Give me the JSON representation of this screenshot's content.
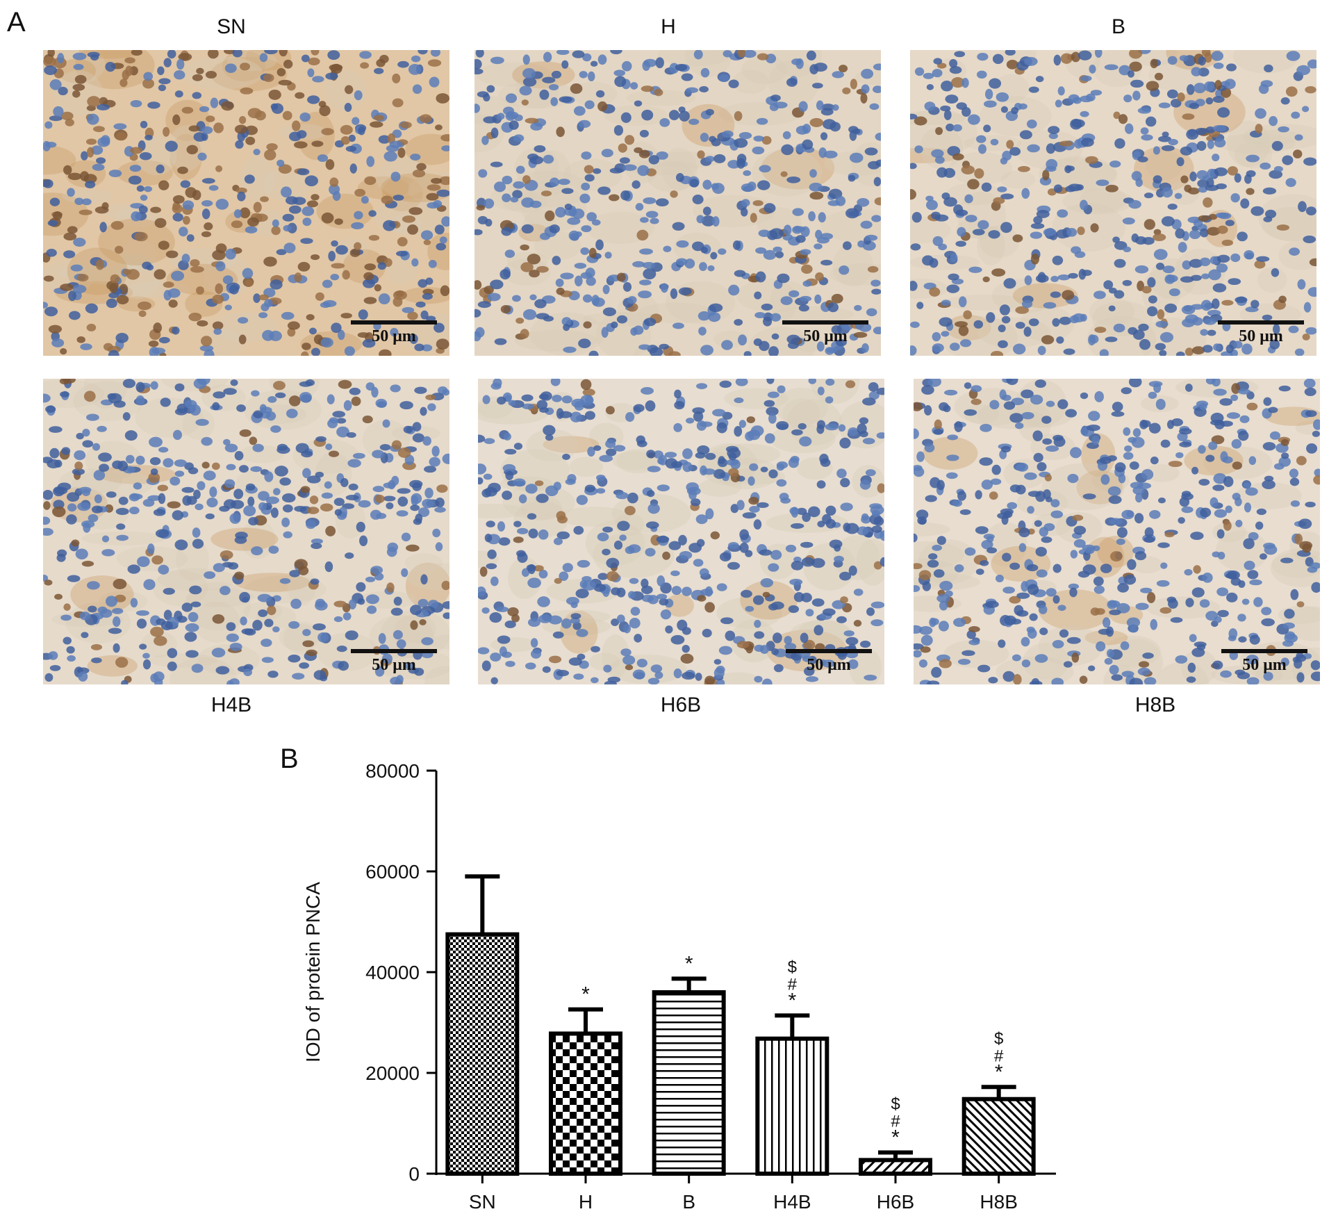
{
  "panel_a": {
    "letter": "A",
    "images": [
      {
        "label": "SN",
        "scale_label": "50 μm",
        "tone": "#e1c7a6",
        "brown": 0.45
      },
      {
        "label": "H",
        "scale_label": "50 μm",
        "tone": "#e4d6c4",
        "brown": 0.15
      },
      {
        "label": "B",
        "scale_label": "50 μm",
        "tone": "#e6d9c8",
        "brown": 0.18
      },
      {
        "label": "H4B",
        "scale_label": "50 μm",
        "tone": "#e6dacb",
        "brown": 0.14
      },
      {
        "label": "H6B",
        "scale_label": "50 μm",
        "tone": "#e7ddd0",
        "brown": 0.08
      },
      {
        "label": "H8B",
        "scale_label": "50 μm",
        "tone": "#e8ddcf",
        "brown": 0.1
      }
    ]
  },
  "panel_b": {
    "letter": "B",
    "chart_data": {
      "type": "bar",
      "title": "",
      "xlabel": "",
      "ylabel": "IOD of protein PNCA",
      "ylim": [
        0,
        80000
      ],
      "yticks": [
        "0",
        "20000",
        "40000",
        "60000",
        "80000"
      ],
      "categories": [
        "SN",
        "H",
        "B",
        "H4B",
        "H6B",
        "H8B"
      ],
      "values": [
        47500,
        27800,
        36000,
        26800,
        2700,
        14800
      ],
      "errors": [
        11500,
        4800,
        2700,
        4600,
        1500,
        2400
      ],
      "annotations": [
        [],
        [
          "*"
        ],
        [
          "*"
        ],
        [
          "$",
          "#",
          "*"
        ],
        [
          "$",
          "#",
          "*"
        ],
        [
          "$",
          "#",
          "*"
        ]
      ],
      "patterns": [
        "fine-check",
        "checker",
        "horizontal",
        "vertical",
        "diag-wide",
        "diag"
      ],
      "grid": false,
      "bar_color": "#000000"
    }
  }
}
